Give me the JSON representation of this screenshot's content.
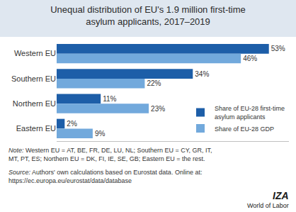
{
  "chart_data": {
    "type": "bar",
    "orientation": "horizontal",
    "title": [
      "Unequal distribution of EU's 1.9 million first-time",
      "asylum applicants, 2017–2019"
    ],
    "categories": [
      "Western EU",
      "Southern EU",
      "Northern EU",
      "Eastern EU"
    ],
    "series": [
      {
        "name": "Share of EU-28 first-time asylum applicants",
        "color": "#1d5ea8",
        "values": [
          53,
          34,
          11,
          2
        ],
        "value_labels": [
          "53%",
          "34%",
          "11%",
          "2%"
        ]
      },
      {
        "name": "Share of EU-28 GDP",
        "color": "#72a9dc",
        "values": [
          46,
          22,
          23,
          9
        ],
        "value_labels": [
          "46%",
          "22%",
          "23%",
          "9%"
        ]
      }
    ],
    "xlim": [
      0,
      58
    ],
    "data_labels": true,
    "tick_labels": "y",
    "grid": false,
    "legend": "lower right",
    "note": {
      "label": "Note:",
      "lines": [
        "Western EU = AT, BE, FR, DE, LU, NL; Southern EU = CY, GR, IT,",
        "MT, PT, ES; Northern EU = DK, FI, IE, SE, GB; Eastern EU = the rest."
      ]
    },
    "source": {
      "label": "Source:",
      "lines": [
        "Authors' own calculations based on Eurostat data. Online at:",
        "https://ec.europa.eu/eurostat/data/database"
      ]
    },
    "logo": [
      "IZA",
      "World of Labor"
    ]
  }
}
